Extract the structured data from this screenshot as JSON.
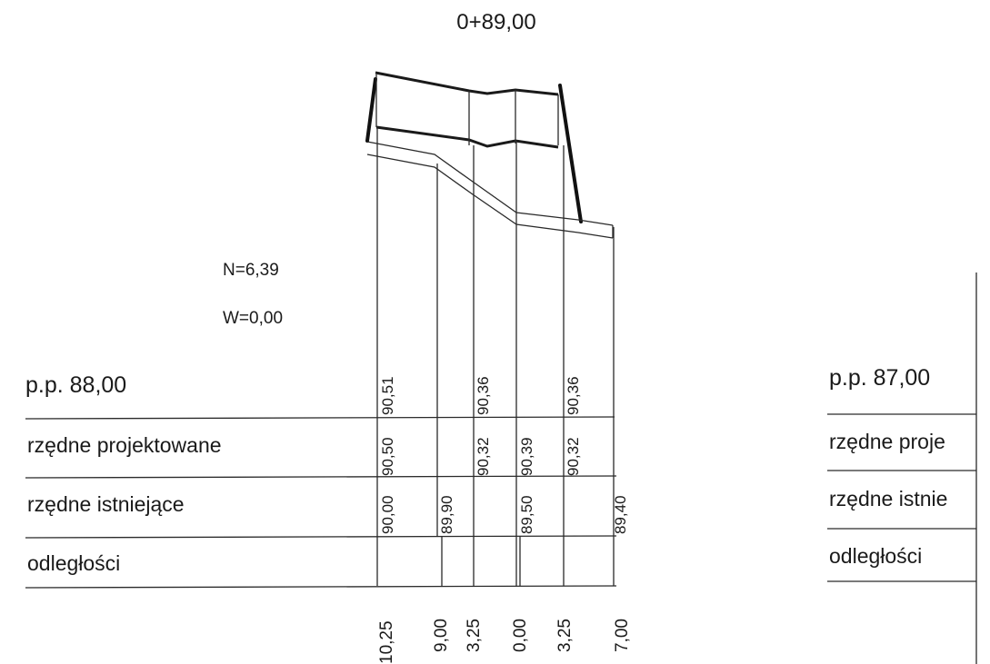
{
  "title": "0+89,00",
  "params": {
    "n": "N=6,39",
    "w": "W=0,00"
  },
  "left_table": {
    "datum": "p.p.  88,00",
    "rows": [
      "rzędne projektowane",
      "rzędne istniejące",
      "odległości"
    ]
  },
  "design_values": [
    "90,51",
    "90,36",
    "90,36"
  ],
  "design_row_values": [
    "90,50",
    "90,32",
    "90,39",
    "90,32"
  ],
  "existing_values": [
    "90,00",
    "89,90",
    "89,50",
    "89,40"
  ],
  "distances": [
    "10,25",
    "9,00",
    "3,25",
    "0,00",
    "3,25",
    "7,00"
  ],
  "right_table": {
    "datum": "p.p.  87,00",
    "rows": [
      "rzędne proje",
      "rzędne istnie",
      "odległości"
    ]
  }
}
